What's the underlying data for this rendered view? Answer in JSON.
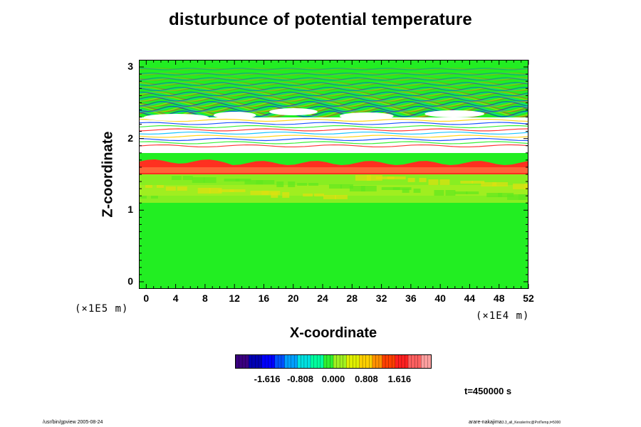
{
  "chart_data": {
    "type": "heatmap",
    "title": "disturbunce of potential temperature",
    "xlabel": "X-coordinate",
    "ylabel": "Z-coordinate",
    "x_scale_label": "(×1E4 m)",
    "y_scale_label": "(×1E5 m)",
    "x_ticks": [
      "0",
      "4",
      "8",
      "12",
      "16",
      "20",
      "24",
      "28",
      "32",
      "36",
      "40",
      "44",
      "48",
      "52"
    ],
    "y_ticks": [
      "0",
      "1",
      "2",
      "3"
    ],
    "xlim": [
      -1,
      52
    ],
    "ylim": [
      -0.1,
      3.1
    ],
    "colorbar": {
      "ticks": [
        "-1.616",
        "-0.808",
        "0.000",
        "0.808",
        "1.616"
      ],
      "range": [
        -2.4,
        2.4
      ],
      "colors": [
        "#3a0080",
        "#0000b4",
        "#0000ff",
        "#0050ff",
        "#00a0ff",
        "#00e0e0",
        "#00ffa0",
        "#30f030",
        "#a0f020",
        "#e0f000",
        "#ffd000",
        "#ff9000",
        "#ff4000",
        "#ff2020",
        "#ff6060",
        "#ffa0a0"
      ]
    },
    "regions": [
      {
        "z_range": [
          -0.1,
          1.1
        ],
        "value": 0.0,
        "description_color": "green"
      },
      {
        "z_range": [
          1.1,
          1.5
        ],
        "value": 0.6
      },
      {
        "z_range": [
          1.5,
          1.7
        ],
        "value": 1.9
      },
      {
        "z_range": [
          1.8,
          2.3
        ],
        "value": "out-of-range"
      },
      {
        "z_range": [
          2.3,
          3.1
        ],
        "value": "wave pattern"
      }
    ]
  },
  "annotations": {
    "time": "t=450000 s",
    "footer_left": "/usr/bin/gpview 2005-08-24",
    "footer_right": "arare-nakajima",
    "footer_right_small": "3.3_all_Kessler/nc@PotTemp,t=5000"
  },
  "colors": {
    "background": "#ffffff",
    "base": "#22ee22",
    "frame": "#000000"
  }
}
